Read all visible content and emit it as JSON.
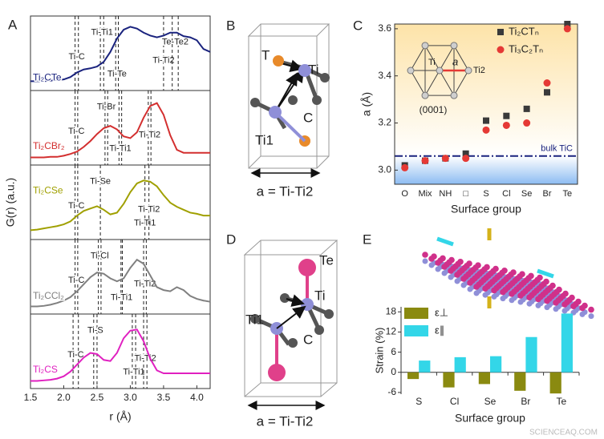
{
  "chart_data": [
    {
      "type": "line",
      "panel": "A",
      "xlabel": "r (Å)",
      "ylabel": "G(r) (a.u.)",
      "xlim": [
        1.5,
        4.2
      ],
      "xticks": [
        1.5,
        {
          "value": 2,
          "label": "2.0"
        },
        2.5,
        {
          "value": 3,
          "label": "3.0"
        },
        3.5,
        {
          "value": 4,
          "label": "4.0"
        }
      ],
      "x": [
        1.5,
        1.6,
        1.7,
        1.8,
        1.9,
        2.0,
        2.1,
        2.2,
        2.3,
        2.4,
        2.5,
        2.6,
        2.7,
        2.8,
        2.9,
        3.0,
        3.1,
        3.2,
        3.3,
        3.4,
        3.5,
        3.6,
        3.7,
        3.8,
        3.9,
        4.0,
        4.1,
        4.2
      ],
      "series": [
        {
          "name": "Ti₂CTe",
          "color": "#1a237e",
          "values": [
            0.05,
            0.05,
            0.05,
            0.06,
            0.07,
            0.08,
            0.12,
            0.2,
            0.25,
            0.27,
            0.3,
            0.38,
            0.55,
            0.78,
            0.93,
            0.98,
            0.95,
            0.88,
            0.83,
            0.8,
            0.83,
            0.88,
            0.88,
            0.82,
            0.8,
            0.75,
            0.6,
            0.55
          ],
          "annotations": [
            {
              "label": "Ti-C",
              "r": [
                2.17,
                2.22
              ]
            },
            {
              "label": "Ti-Ti1",
              "r": [
                2.55,
                2.6
              ]
            },
            {
              "label": "Ti-Te",
              "r": [
                2.78,
                2.82
              ]
            },
            {
              "label": "Ti-Ti2",
              "r": [
                3.5
              ]
            },
            {
              "label": "Te-Te2",
              "r": [
                3.63,
                3.72
              ]
            }
          ]
        },
        {
          "name": "Ti₂CBr₂",
          "color": "#d32f2f",
          "values": [
            0.02,
            0.02,
            0.02,
            0.03,
            0.03,
            0.05,
            0.08,
            0.12,
            0.2,
            0.3,
            0.42,
            0.52,
            0.56,
            0.5,
            0.38,
            0.35,
            0.45,
            0.7,
            0.9,
            0.95,
            0.75,
            0.4,
            0.15,
            0.1,
            0.1,
            0.1,
            0.1,
            0.1
          ],
          "annotations": [
            {
              "label": "Ti-C",
              "r": [
                2.17,
                2.21
              ]
            },
            {
              "label": "Ti-Br",
              "r": [
                2.62,
                2.66
              ]
            },
            {
              "label": "Ti-Ti1",
              "r": [
                2.83,
                2.87
              ]
            },
            {
              "label": "Ti-Ti2",
              "r": [
                3.27,
                3.31
              ]
            }
          ]
        },
        {
          "name": "Ti₂CSe",
          "color": "#a0a000",
          "values": [
            0.05,
            0.06,
            0.08,
            0.1,
            0.12,
            0.15,
            0.2,
            0.3,
            0.38,
            0.42,
            0.46,
            0.4,
            0.32,
            0.35,
            0.5,
            0.7,
            0.85,
            0.9,
            0.88,
            0.8,
            0.65,
            0.52,
            0.45,
            0.4,
            0.35,
            0.33,
            0.3,
            0.3
          ],
          "annotations": [
            {
              "label": "Ti-C",
              "r": [
                2.17,
                2.21
              ]
            },
            {
              "label": "Ti-Se",
              "r": [
                2.55
              ]
            },
            {
              "label": "Ti-Ti1",
              "r": [
                3.22
              ]
            },
            {
              "label": "Ti-Ti2",
              "r": [
                3.28
              ]
            }
          ]
        },
        {
          "name": "Ti₂CCl₂",
          "color": "#808080",
          "values": [
            0.02,
            0.02,
            0.03,
            0.05,
            0.08,
            0.12,
            0.18,
            0.28,
            0.4,
            0.52,
            0.6,
            0.58,
            0.5,
            0.45,
            0.5,
            0.68,
            0.82,
            0.75,
            0.55,
            0.35,
            0.3,
            0.28,
            0.35,
            0.3,
            0.2,
            0.15,
            0.12,
            0.1
          ],
          "annotations": [
            {
              "label": "Ti-C",
              "r": [
                2.17,
                2.21
              ]
            },
            {
              "label": "Ti-Cl",
              "r": [
                2.52,
                2.56
              ]
            },
            {
              "label": "Ti-Ti1",
              "r": [
                2.86,
                2.88
              ]
            },
            {
              "label": "Ti-Ti2",
              "r": [
                3.2,
                3.24
              ]
            }
          ]
        },
        {
          "name": "Ti₂CS",
          "color": "#e020c0",
          "values": [
            0.02,
            0.02,
            0.03,
            0.04,
            0.06,
            0.1,
            0.18,
            0.3,
            0.42,
            0.5,
            0.48,
            0.38,
            0.36,
            0.5,
            0.75,
            0.88,
            0.9,
            0.7,
            0.4,
            0.2,
            0.15,
            0.15,
            0.15,
            0.15,
            0.15,
            0.15,
            0.15,
            0.15
          ],
          "annotations": [
            {
              "label": "Ti-C",
              "r": [
                2.14,
                2.22
              ]
            },
            {
              "label": "Ti-S",
              "r": [
                2.45,
                2.5
              ]
            },
            {
              "label": "Ti-Ti1",
              "r": [
                3.03,
                3.08
              ]
            },
            {
              "label": "Ti-Ti2",
              "r": [
                3.2,
                3.25
              ]
            }
          ]
        }
      ]
    },
    {
      "type": "scatter",
      "panel": "C",
      "ylabel": "a (Å)",
      "xlabel": "Surface group",
      "categories": [
        "O",
        "Mix",
        "NH",
        "□",
        "S",
        "Cl",
        "Se",
        "Br",
        "Te"
      ],
      "ylim": [
        2.94,
        3.62
      ],
      "yticks": [
        {
          "value": 3,
          "label": "3.0"
        },
        3.2,
        3.4,
        3.6
      ],
      "series": [
        {
          "name": "Ti₂CTₙ",
          "color": "#3a3a3a",
          "marker": "square",
          "values": [
            3.02,
            3.04,
            3.05,
            3.07,
            3.21,
            3.23,
            3.26,
            3.33,
            3.62
          ]
        },
        {
          "name": "Ti₃C₂Tₙ",
          "color": "#e53935",
          "marker": "circle",
          "values": [
            3.01,
            3.04,
            3.05,
            3.05,
            3.17,
            3.19,
            3.2,
            3.37,
            3.6
          ]
        }
      ],
      "reference": {
        "label": "bulk TiC",
        "value": 3.06,
        "color": "#1a237e"
      },
      "inset": [
        "Ti",
        "a",
        "Ti2",
        "(0001)"
      ]
    },
    {
      "type": "bar",
      "panel": "E",
      "ylabel": "Strain (%)",
      "xlabel": "Surface group",
      "categories": [
        "S",
        "Cl",
        "Se",
        "Br",
        "Te"
      ],
      "ylim": [
        -6.5,
        19.5
      ],
      "yticks": [
        -6,
        0,
        6,
        12,
        18
      ],
      "series": [
        {
          "name": "ε⊥",
          "color": "#8a8a10",
          "values": [
            -2,
            -4.5,
            -3.5,
            -5.5,
            -6.3
          ]
        },
        {
          "name": "ε∥",
          "color": "#33d6e8",
          "values": [
            3.5,
            4.5,
            4.8,
            10.5,
            17.5
          ]
        }
      ]
    }
  ],
  "diagrams": {
    "B": {
      "panel": "B",
      "labels": [
        "T",
        "Ti",
        "C",
        "Ti1"
      ],
      "caption": "a = Ti-Ti2"
    },
    "D": {
      "panel": "D",
      "labels": [
        "Te",
        "Ti",
        "Ti1",
        "C"
      ],
      "caption": "a = Ti-Ti2"
    }
  },
  "watermark": "SCIENCEAQ.COM"
}
